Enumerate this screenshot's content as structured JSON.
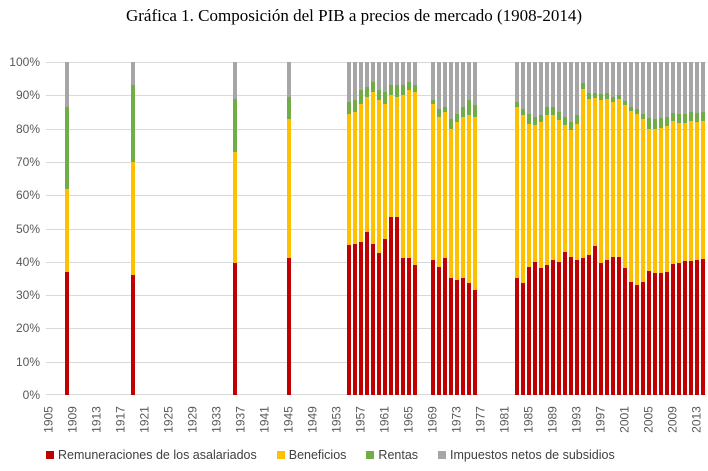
{
  "title": "Gráfica 1. Composición del PIB a precios de mercado (1908-2014)",
  "y_axis": {
    "labels": [
      "0%",
      "10%",
      "20%",
      "30%",
      "40%",
      "50%",
      "60%",
      "70%",
      "80%",
      "90%",
      "100%"
    ]
  },
  "x_axis": {
    "labels": [
      "1905",
      "1909",
      "1913",
      "1917",
      "1921",
      "1925",
      "1929",
      "1933",
      "1937",
      "1941",
      "1945",
      "1949",
      "1953",
      "1957",
      "1961",
      "1965",
      "1969",
      "1973",
      "1977",
      "1981",
      "1985",
      "1989",
      "1993",
      "1997",
      "2001",
      "2005",
      "2009",
      "2013"
    ]
  },
  "legend": [
    {
      "label": "Remuneraciones de los asalariados",
      "color": "#C00000"
    },
    {
      "label": "Beneficios",
      "color": "#FFC000"
    },
    {
      "label": "Rentas",
      "color": "#70AD47"
    },
    {
      "label": "Impuestos netos de subsidios",
      "color": "#A6A6A6"
    }
  ],
  "chart_data": {
    "type": "bar",
    "stacked": true,
    "unit": "percent",
    "ylim": [
      0,
      100
    ],
    "x_range": [
      1905,
      2014
    ],
    "grid": true,
    "legend_position": "bottom",
    "title": "Gráfica 1. Composición del PIB a precios de mercado (1908-2014)",
    "series": [
      {
        "key": "remuneraciones",
        "name": "Remuneraciones de los asalariados",
        "color": "#C00000"
      },
      {
        "key": "beneficios",
        "name": "Beneficios",
        "color": "#FFC000"
      },
      {
        "key": "rentas",
        "name": "Rentas",
        "color": "#70AD47"
      },
      {
        "key": "impuestos",
        "name": "Impuestos netos de subsidios",
        "color": "#A6A6A6"
      }
    ],
    "bars": [
      {
        "year": 1908,
        "remuneraciones": 37.0,
        "beneficios": 25.0,
        "rentas": 24.5,
        "impuestos": 13.5
      },
      {
        "year": 1919,
        "remuneraciones": 36.0,
        "beneficios": 34.0,
        "rentas": 23.0,
        "impuestos": 7.0
      },
      {
        "year": 1936,
        "remuneraciones": 39.5,
        "beneficios": 33.5,
        "rentas": 16.0,
        "impuestos": 11.0
      },
      {
        "year": 1945,
        "remuneraciones": 41.0,
        "beneficios": 42.0,
        "rentas": 6.5,
        "impuestos": 10.5
      },
      {
        "year": 1955,
        "remuneraciones": 45.0,
        "beneficios": 39.5,
        "rentas": 3.5,
        "impuestos": 12.0
      },
      {
        "year": 1956,
        "remuneraciones": 45.5,
        "beneficios": 39.5,
        "rentas": 3.5,
        "impuestos": 11.5
      },
      {
        "year": 1957,
        "remuneraciones": 46.0,
        "beneficios": 41.5,
        "rentas": 4.0,
        "impuestos": 8.5
      },
      {
        "year": 1958,
        "remuneraciones": 49.0,
        "beneficios": 40.5,
        "rentas": 3.0,
        "impuestos": 7.5
      },
      {
        "year": 1959,
        "remuneraciones": 45.5,
        "beneficios": 45.5,
        "rentas": 3.0,
        "impuestos": 6.0
      },
      {
        "year": 1960,
        "remuneraciones": 42.5,
        "beneficios": 46.0,
        "rentas": 3.0,
        "impuestos": 8.5
      },
      {
        "year": 1961,
        "remuneraciones": 47.0,
        "beneficios": 40.5,
        "rentas": 3.5,
        "impuestos": 9.0
      },
      {
        "year": 1962,
        "remuneraciones": 53.5,
        "beneficios": 36.5,
        "rentas": 3.0,
        "impuestos": 7.0
      },
      {
        "year": 1963,
        "remuneraciones": 53.5,
        "beneficios": 36.0,
        "rentas": 3.5,
        "impuestos": 7.0
      },
      {
        "year": 1964,
        "remuneraciones": 41.0,
        "beneficios": 49.0,
        "rentas": 3.0,
        "impuestos": 7.0
      },
      {
        "year": 1965,
        "remuneraciones": 41.0,
        "beneficios": 50.5,
        "rentas": 2.5,
        "impuestos": 6.0
      },
      {
        "year": 1966,
        "remuneraciones": 39.0,
        "beneficios": 52.0,
        "rentas": 2.0,
        "impuestos": 7.0
      },
      {
        "year": 1969,
        "remuneraciones": 40.5,
        "beneficios": 47.0,
        "rentas": 1.0,
        "impuestos": 11.5
      },
      {
        "year": 1970,
        "remuneraciones": 38.5,
        "beneficios": 45.0,
        "rentas": 2.5,
        "impuestos": 14.0
      },
      {
        "year": 1971,
        "remuneraciones": 41.0,
        "beneficios": 44.0,
        "rentas": 1.5,
        "impuestos": 13.5
      },
      {
        "year": 1972,
        "remuneraciones": 35.0,
        "beneficios": 45.0,
        "rentas": 3.0,
        "impuestos": 17.0
      },
      {
        "year": 1973,
        "remuneraciones": 34.5,
        "beneficios": 47.5,
        "rentas": 2.5,
        "impuestos": 15.5
      },
      {
        "year": 1974,
        "remuneraciones": 35.0,
        "beneficios": 48.5,
        "rentas": 3.0,
        "impuestos": 13.5
      },
      {
        "year": 1975,
        "remuneraciones": 33.5,
        "beneficios": 50.5,
        "rentas": 4.5,
        "impuestos": 11.5
      },
      {
        "year": 1976,
        "remuneraciones": 31.5,
        "beneficios": 52.0,
        "rentas": 3.5,
        "impuestos": 13.0
      },
      {
        "year": 1983,
        "remuneraciones": 35.0,
        "beneficios": 51.5,
        "rentas": 1.5,
        "impuestos": 12.0
      },
      {
        "year": 1984,
        "remuneraciones": 33.5,
        "beneficios": 50.5,
        "rentas": 2.0,
        "impuestos": 14.0
      },
      {
        "year": 1985,
        "remuneraciones": 38.5,
        "beneficios": 43.0,
        "rentas": 3.0,
        "impuestos": 15.5
      },
      {
        "year": 1986,
        "remuneraciones": 40.0,
        "beneficios": 41.0,
        "rentas": 2.5,
        "impuestos": 16.5
      },
      {
        "year": 1987,
        "remuneraciones": 38.0,
        "beneficios": 44.0,
        "rentas": 2.0,
        "impuestos": 16.0
      },
      {
        "year": 1988,
        "remuneraciones": 39.0,
        "beneficios": 45.0,
        "rentas": 2.5,
        "impuestos": 13.5
      },
      {
        "year": 1989,
        "remuneraciones": 40.5,
        "beneficios": 43.5,
        "rentas": 2.5,
        "impuestos": 13.5
      },
      {
        "year": 1990,
        "remuneraciones": 40.0,
        "beneficios": 42.5,
        "rentas": 2.5,
        "impuestos": 15.0
      },
      {
        "year": 1991,
        "remuneraciones": 43.0,
        "beneficios": 38.0,
        "rentas": 2.5,
        "impuestos": 16.5
      },
      {
        "year": 1992,
        "remuneraciones": 41.5,
        "beneficios": 38.0,
        "rentas": 2.5,
        "impuestos": 18.0
      },
      {
        "year": 1993,
        "remuneraciones": 40.5,
        "beneficios": 41.0,
        "rentas": 2.5,
        "impuestos": 16.0
      },
      {
        "year": 1994,
        "remuneraciones": 41.0,
        "beneficios": 51.0,
        "rentas": 1.7,
        "impuestos": 6.3
      },
      {
        "year": 1995,
        "remuneraciones": 42.0,
        "beneficios": 47.0,
        "rentas": 1.8,
        "impuestos": 9.2
      },
      {
        "year": 1996,
        "remuneraciones": 44.7,
        "beneficios": 44.5,
        "rentas": 1.5,
        "impuestos": 9.3
      },
      {
        "year": 1997,
        "remuneraciones": 39.5,
        "beneficios": 49.2,
        "rentas": 1.7,
        "impuestos": 9.6
      },
      {
        "year": 1998,
        "remuneraciones": 40.5,
        "beneficios": 48.5,
        "rentas": 1.6,
        "impuestos": 9.4
      },
      {
        "year": 1999,
        "remuneraciones": 41.3,
        "beneficios": 46.8,
        "rentas": 1.3,
        "impuestos": 10.6
      },
      {
        "year": 2000,
        "remuneraciones": 41.5,
        "beneficios": 47.3,
        "rentas": 1.3,
        "impuestos": 9.9
      },
      {
        "year": 2001,
        "remuneraciones": 38.0,
        "beneficios": 49.0,
        "rentas": 1.4,
        "impuestos": 11.6
      },
      {
        "year": 2002,
        "remuneraciones": 34.0,
        "beneficios": 51.3,
        "rentas": 1.3,
        "impuestos": 13.4
      },
      {
        "year": 2003,
        "remuneraciones": 33.0,
        "beneficios": 51.3,
        "rentas": 1.5,
        "impuestos": 14.2
      },
      {
        "year": 2004,
        "remuneraciones": 34.0,
        "beneficios": 48.8,
        "rentas": 1.7,
        "impuestos": 15.5
      },
      {
        "year": 2005,
        "remuneraciones": 37.3,
        "beneficios": 42.5,
        "rentas": 3.5,
        "impuestos": 16.7
      },
      {
        "year": 2006,
        "remuneraciones": 36.5,
        "beneficios": 43.3,
        "rentas": 3.0,
        "impuestos": 17.2
      },
      {
        "year": 2007,
        "remuneraciones": 36.5,
        "beneficios": 43.8,
        "rentas": 2.8,
        "impuestos": 16.9
      },
      {
        "year": 2008,
        "remuneraciones": 37.0,
        "beneficios": 43.8,
        "rentas": 2.6,
        "impuestos": 16.6
      },
      {
        "year": 2009,
        "remuneraciones": 39.3,
        "beneficios": 43.0,
        "rentas": 2.5,
        "impuestos": 15.2
      },
      {
        "year": 2010,
        "remuneraciones": 39.6,
        "beneficios": 42.2,
        "rentas": 2.7,
        "impuestos": 15.5
      },
      {
        "year": 2011,
        "remuneraciones": 40.3,
        "beneficios": 41.5,
        "rentas": 2.7,
        "impuestos": 15.5
      },
      {
        "year": 2012,
        "remuneraciones": 40.3,
        "beneficios": 42.0,
        "rentas": 2.7,
        "impuestos": 15.0
      },
      {
        "year": 2013,
        "remuneraciones": 40.5,
        "beneficios": 41.5,
        "rentas": 2.8,
        "impuestos": 15.2
      },
      {
        "year": 2014,
        "remuneraciones": 40.8,
        "beneficios": 41.5,
        "rentas": 2.7,
        "impuestos": 15.0
      }
    ]
  }
}
